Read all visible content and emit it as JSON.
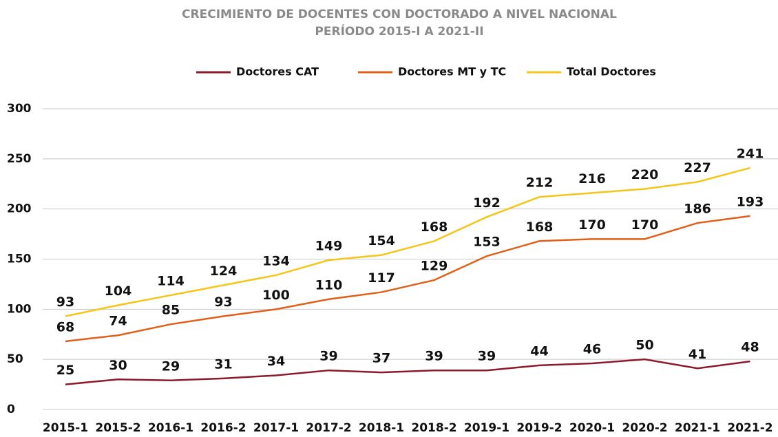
{
  "chart_data": {
    "type": "line",
    "title": "CRECIMIENTO DE DOCENTES CON DOCTORADO A NIVEL NACIONAL",
    "subtitle": "PERÍODO 2015-I A 2021-II",
    "categories": [
      "2015-1",
      "2015-2",
      "2016-1",
      "2016-2",
      "2017-1",
      "2017-2",
      "2018-1",
      "2018-2",
      "2019-1",
      "2019-2",
      "2020-1",
      "2020-2",
      "2021-1",
      "2021-2"
    ],
    "series": [
      {
        "name": "Doctores CAT",
        "color": "#8b1a2b",
        "values": [
          25,
          30,
          29,
          31,
          34,
          39,
          37,
          39,
          39,
          44,
          46,
          50,
          41,
          48
        ]
      },
      {
        "name": "Doctores MT y TC",
        "color": "#e0601a",
        "values": [
          68,
          74,
          85,
          93,
          100,
          110,
          117,
          129,
          153,
          168,
          170,
          170,
          186,
          193
        ]
      },
      {
        "name": "Total Doctores",
        "color": "#f5c518",
        "values": [
          93,
          104,
          114,
          124,
          134,
          149,
          154,
          168,
          192,
          212,
          216,
          220,
          227,
          241
        ]
      }
    ],
    "ylim": [
      0,
      300
    ],
    "yticks": [
      0,
      50,
      100,
      150,
      200,
      250,
      300
    ],
    "grid": true,
    "legend": "top"
  }
}
